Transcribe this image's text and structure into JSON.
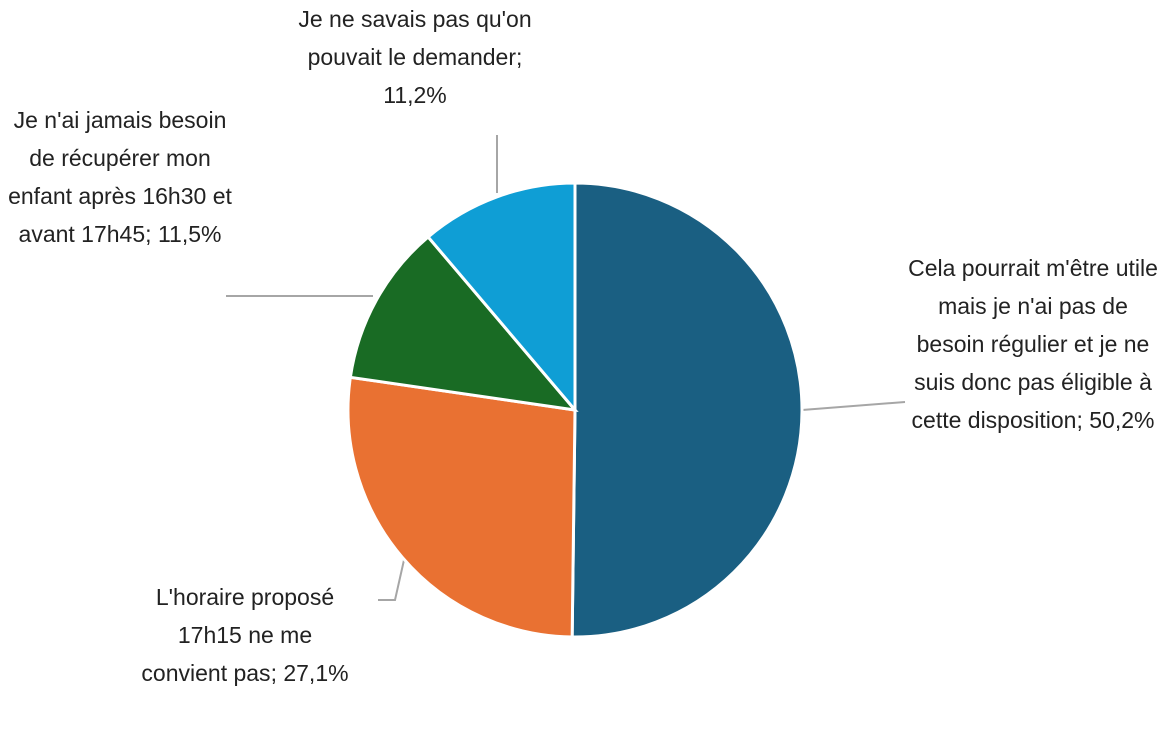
{
  "chart_data": {
    "type": "pie",
    "categories": [
      "Cela pourrait m'être utile mais je n'ai pas de besoin régulier et je ne suis donc pas éligible à cette disposition",
      "L'horaire proposé 17h15 ne me convient pas",
      "Je n'ai jamais besoin de récupérer mon enfant après 16h30 et avant 17h45",
      "Je ne savais pas qu'on pouvait le demander"
    ],
    "values": [
      50.2,
      27.1,
      11.5,
      11.2
    ],
    "value_labels": [
      "50,2%",
      "27,1%",
      "11,5%",
      "11,2%"
    ],
    "label_separator": ";",
    "colors": [
      "#1a5f82",
      "#e97132",
      "#196b24",
      "#0f9ed5"
    ]
  }
}
